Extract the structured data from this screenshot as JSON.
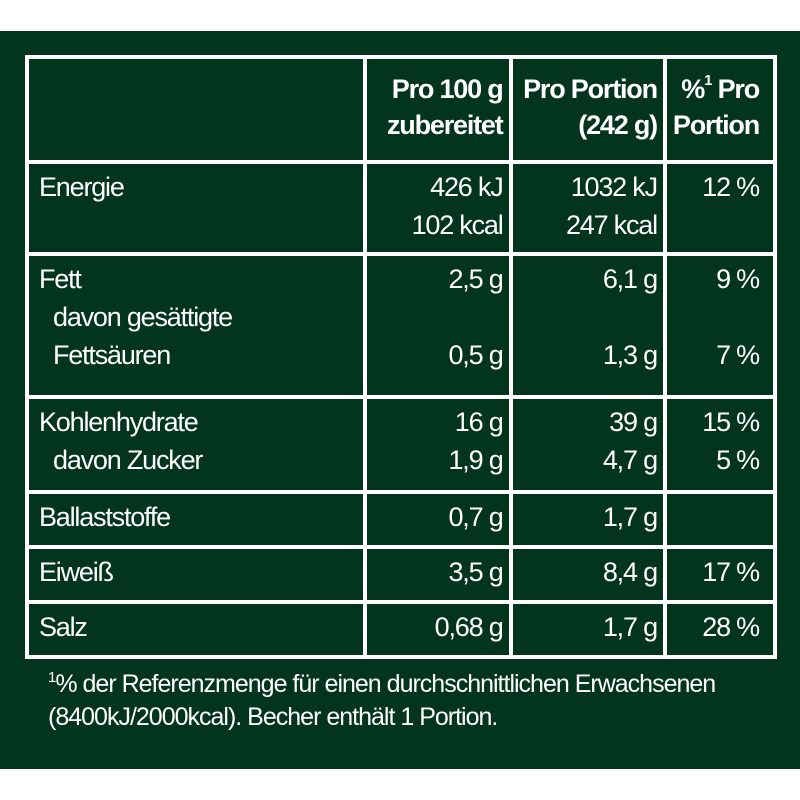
{
  "header": {
    "col1": "",
    "col2": [
      "Pro 100 g",
      "zubereitet"
    ],
    "col3": [
      "Pro Portion",
      "(242 g)"
    ],
    "col4_sup": "1",
    "col4": [
      "%",
      "Pro",
      "Portion"
    ]
  },
  "rows": [
    {
      "label": [
        "Energie"
      ],
      "per100": [
        "426 kJ",
        "102 kcal"
      ],
      "portion": [
        "1032 kJ",
        "247 kcal"
      ],
      "ri": [
        "12 %"
      ]
    },
    {
      "label": [
        "Fett",
        "davon gesättigte",
        "Fettsäuren"
      ],
      "per100": [
        "2,5 g",
        "",
        "0,5 g"
      ],
      "portion": [
        "6,1 g",
        "",
        "1,3 g"
      ],
      "ri": [
        "9 %",
        "",
        "7 %"
      ]
    },
    {
      "label": [
        "Kohlenhydrate",
        "davon Zucker"
      ],
      "per100": [
        "16 g",
        "1,9 g"
      ],
      "portion": [
        "39 g",
        "4,7 g"
      ],
      "ri": [
        "15 %",
        "5 %"
      ]
    },
    {
      "label": [
        "Ballaststoffe"
      ],
      "per100": [
        "0,7 g"
      ],
      "portion": [
        "1,7 g"
      ],
      "ri": [
        ""
      ]
    },
    {
      "label": [
        "Eiweiß"
      ],
      "per100": [
        "3,5 g"
      ],
      "portion": [
        "8,4 g"
      ],
      "ri": [
        "17 %"
      ]
    },
    {
      "label": [
        "Salz"
      ],
      "per100": [
        "0,68 g"
      ],
      "portion": [
        "1,7 g"
      ],
      "ri": [
        "28 %"
      ]
    }
  ],
  "footnote": {
    "sup": "1",
    "line1": "% der Referenzmenge für einen durchschnittlichen Erwachsenen",
    "line2": "(8400kJ/2000kcal). Becher enthält 1 Portion."
  },
  "colors": {
    "background": "#03341e",
    "lines": "#ffffff"
  }
}
